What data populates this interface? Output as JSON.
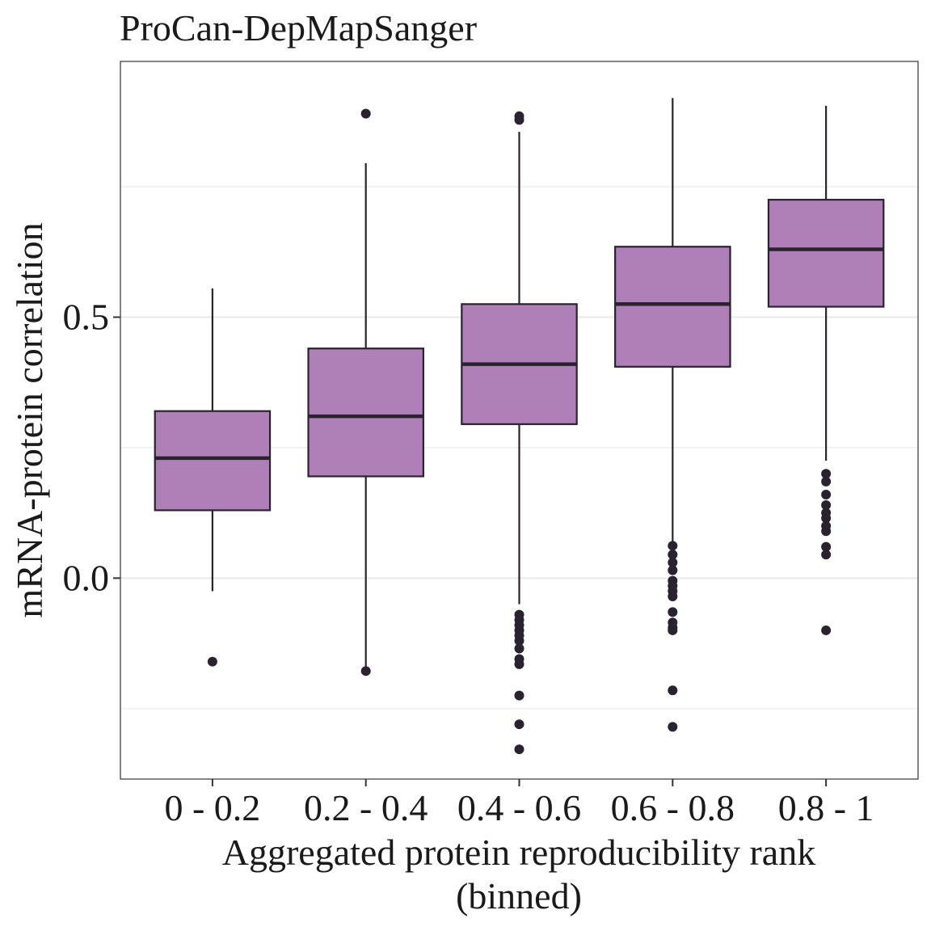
{
  "chart_data": {
    "type": "boxplot",
    "title": "ProCan-DepMapSanger",
    "xlabel_lines": [
      "Aggregated protein reproducibility rank",
      "(binned)"
    ],
    "ylabel": "mRNA-protein correlation",
    "categories": [
      "0 - 0.2",
      "0.2 - 0.4",
      "0.4 - 0.6",
      "0.6 - 0.8",
      "0.8 - 1"
    ],
    "yticks": [
      {
        "value": 0.0,
        "label": "0.0"
      },
      {
        "value": 0.5,
        "label": "0.5"
      }
    ],
    "minor_gridlines": [
      -0.25,
      0.25,
      0.75
    ],
    "ylim": [
      -0.385,
      0.99
    ],
    "box_fill": "#af7fb7",
    "box_stroke": "#2b2230",
    "grid_color": "#ebebeb",
    "boxes": [
      {
        "q1": 0.13,
        "median": 0.23,
        "q3": 0.32,
        "whisker_low": -0.025,
        "whisker_high": 0.555,
        "outliers": [
          -0.16
        ]
      },
      {
        "q1": 0.195,
        "median": 0.31,
        "q3": 0.44,
        "whisker_low": -0.175,
        "whisker_high": 0.795,
        "outliers": [
          0.89,
          -0.178
        ]
      },
      {
        "q1": 0.295,
        "median": 0.41,
        "q3": 0.525,
        "whisker_low": -0.05,
        "whisker_high": 0.855,
        "outliers": [
          0.885,
          0.878,
          -0.07,
          -0.08,
          -0.09,
          -0.1,
          -0.11,
          -0.12,
          -0.135,
          -0.155,
          -0.165,
          -0.225,
          -0.28,
          -0.328
        ]
      },
      {
        "q1": 0.405,
        "median": 0.525,
        "q3": 0.635,
        "whisker_low": 0.07,
        "whisker_high": 0.92,
        "outliers": [
          0.062,
          0.045,
          0.03,
          0.015,
          -0.005,
          -0.015,
          -0.025,
          -0.035,
          -0.065,
          -0.085,
          -0.095,
          -0.1,
          -0.215,
          -0.285
        ]
      },
      {
        "q1": 0.52,
        "median": 0.63,
        "q3": 0.725,
        "whisker_low": 0.225,
        "whisker_high": 0.905,
        "outliers": [
          0.2,
          0.185,
          0.16,
          0.14,
          0.125,
          0.115,
          0.1,
          0.09,
          0.06,
          0.045,
          -0.1
        ]
      }
    ]
  }
}
